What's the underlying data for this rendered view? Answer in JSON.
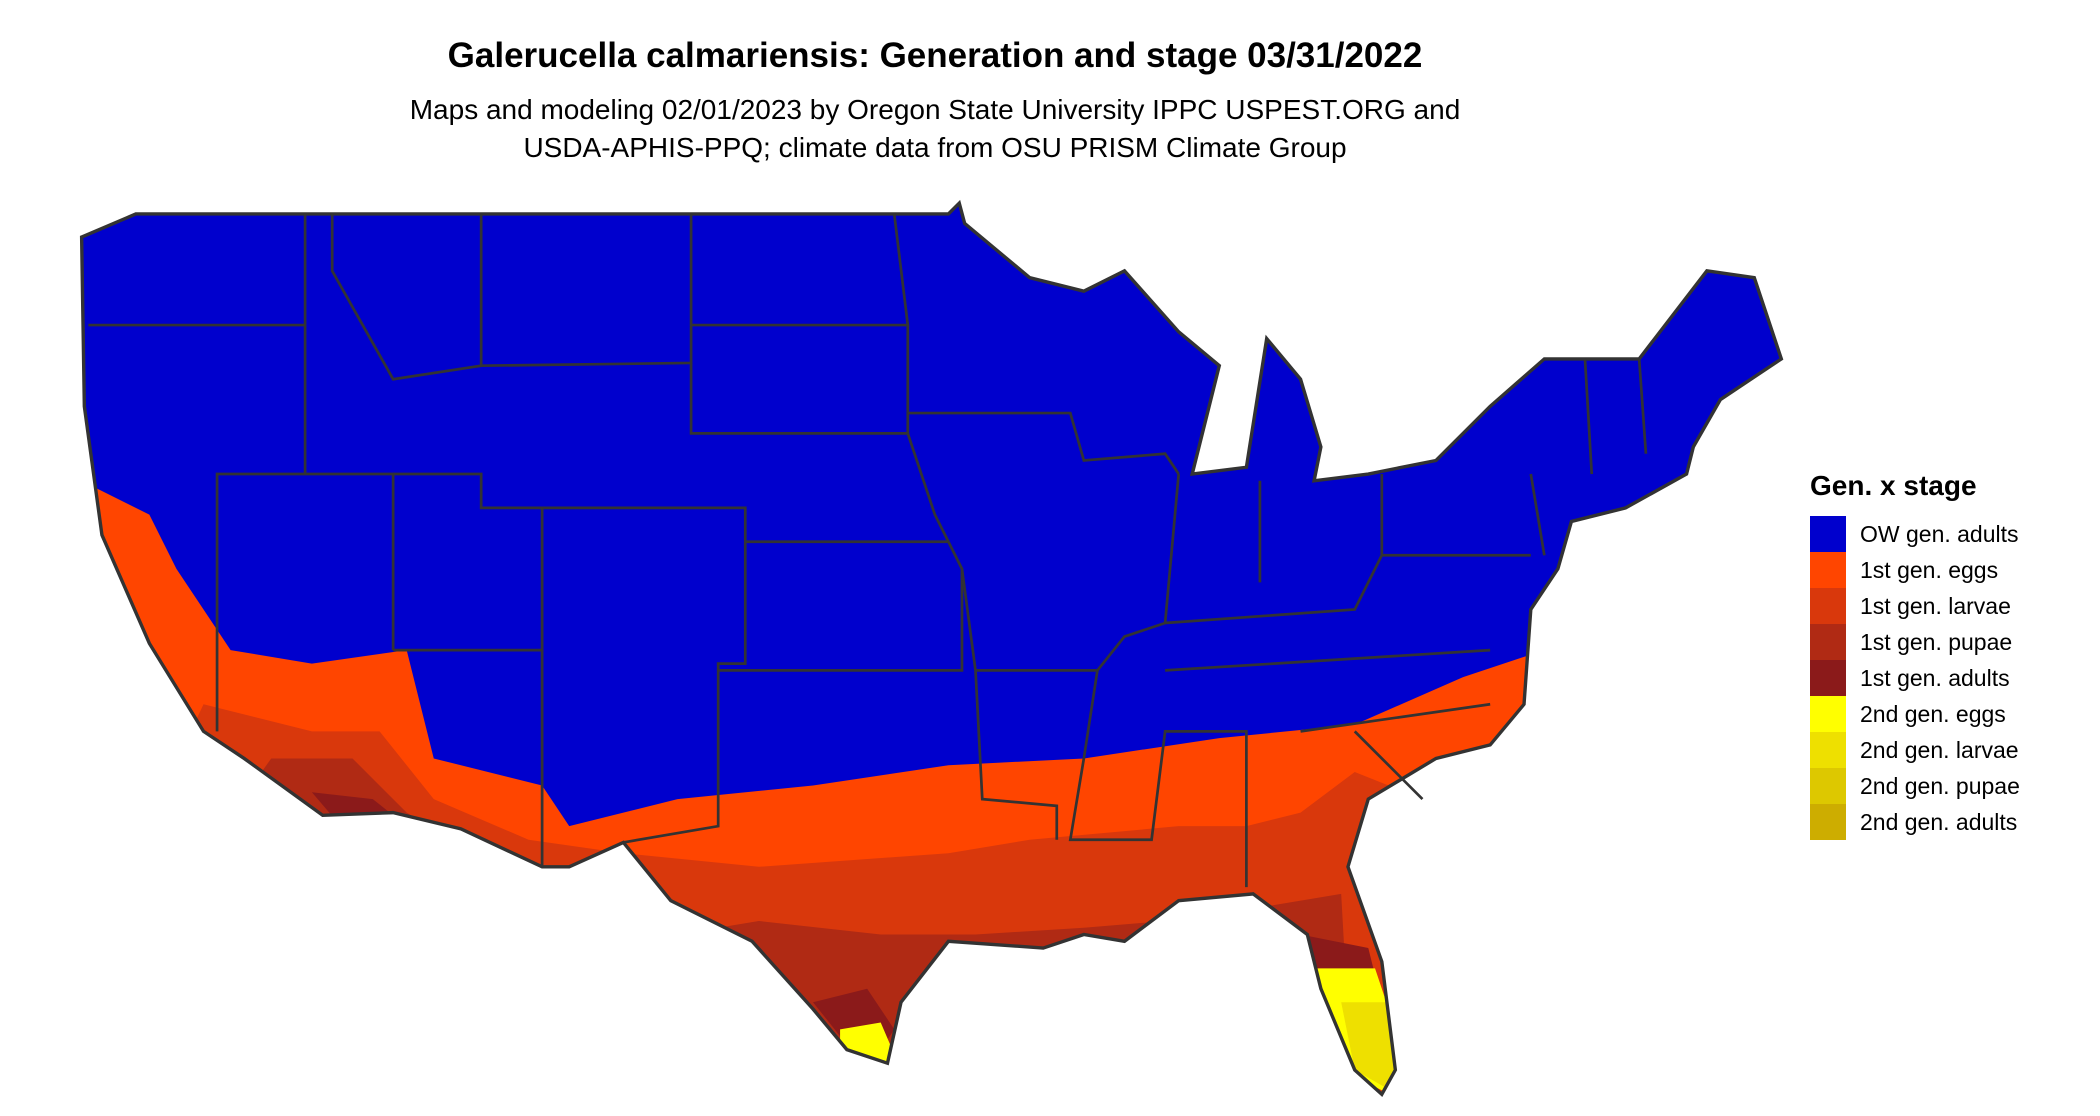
{
  "title": "Galerucella calmariensis: Generation and stage 03/31/2022",
  "subtitle_lines": [
    "Maps and modeling 02/01/2023 by Oregon State University IPPC USPEST.ORG and",
    "USDA-APHIS-PPQ; climate data from OSU PRISM Climate Group"
  ],
  "legend": {
    "title": "Gen. x stage",
    "items": [
      {
        "label": "OW gen. adults",
        "color": "#0000CD"
      },
      {
        "label": "1st gen. eggs",
        "color": "#FF4500"
      },
      {
        "label": "1st gen. larvae",
        "color": "#D9380C"
      },
      {
        "label": "1st gen. pupae",
        "color": "#B02A14"
      },
      {
        "label": "1st gen. adults",
        "color": "#8B1A1A"
      },
      {
        "label": "2nd gen. eggs",
        "color": "#FFFF00"
      },
      {
        "label": "2nd gen. larvae",
        "color": "#EEE000"
      },
      {
        "label": "2nd gen. pupae",
        "color": "#DDC800"
      },
      {
        "label": "2nd gen. adults",
        "color": "#CDAD00"
      }
    ]
  },
  "border_color": "#333333"
}
